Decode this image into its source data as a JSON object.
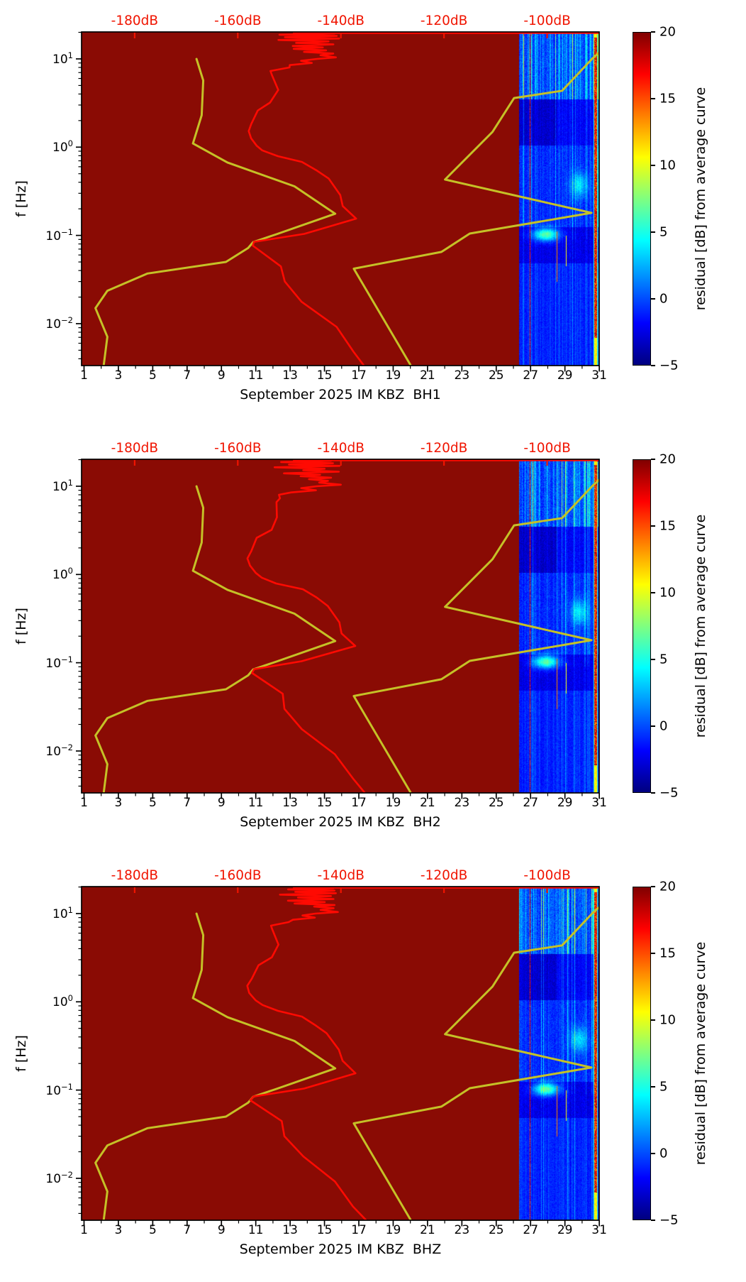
{
  "colors": {
    "plot_background_nodata": "#8a0b04",
    "psd_curve": "#ff0a02",
    "noise_model_curve": "#c5c127",
    "top_axis_text": "#f01400",
    "axis_text": "#000000"
  },
  "colorbar": {
    "label": "residual [dB] from average curve",
    "tick_labels": [
      "20",
      "15",
      "10",
      "5",
      "0",
      "−5"
    ],
    "tick_values": [
      20,
      15,
      10,
      5,
      0,
      -5
    ],
    "vmin": -5,
    "vmax": 20,
    "colormap": "jet"
  },
  "axes": {
    "y_label": "f [Hz]",
    "y_tick_exponents": [
      "1",
      "0",
      "−1",
      "−2"
    ],
    "y_tick_values": [
      10,
      1,
      0.1,
      0.01
    ],
    "y_range_hz": [
      0.00335,
      20.2
    ],
    "x_tick_days": [
      1,
      3,
      5,
      7,
      9,
      11,
      13,
      15,
      17,
      19,
      21,
      23,
      25,
      27,
      29,
      31
    ],
    "x_minor_days": [
      2,
      4,
      6,
      8,
      10,
      12,
      14,
      16,
      18,
      20,
      22,
      24,
      26,
      28,
      30
    ],
    "x_range_days": [
      0.86,
      31.0
    ],
    "top_tick_labels": [
      "-180dB",
      "-160dB",
      "-140dB",
      "-120dB",
      "-100dB"
    ],
    "top_tick_values": [
      -180,
      -160,
      -140,
      -120,
      -100
    ],
    "top_range_db": [
      -190.3,
      -89.9
    ]
  },
  "panels": [
    {
      "xlabel": "September 2025 IM KBZ  BH1",
      "channel": "BH1",
      "seed": 3
    },
    {
      "xlabel": "September 2025 IM KBZ  BH2",
      "channel": "BH2",
      "seed": 5
    },
    {
      "xlabel": "September 2025 IM KBZ  BHZ",
      "channel": "BHZ",
      "seed": 9
    }
  ],
  "chart_data": {
    "type": "heatmap",
    "title": "",
    "xlabel_per_panel": [
      "September 2025 IM KBZ  BH1",
      "September 2025 IM KBZ  BH2",
      "September 2025 IM KBZ  BHZ"
    ],
    "ylabel": "f [Hz]",
    "x_axis": {
      "unit": "day of month",
      "range": [
        0.86,
        31.0
      ],
      "major_ticks": [
        1,
        3,
        5,
        7,
        9,
        11,
        13,
        15,
        17,
        19,
        21,
        23,
        25,
        27,
        29,
        31
      ]
    },
    "y_axis": {
      "unit": "Hz",
      "scale": "log",
      "range": [
        0.00335,
        20.2
      ],
      "major_ticks": [
        10,
        1,
        0.1,
        0.01
      ]
    },
    "secondary_top_axis": {
      "unit": "dB",
      "range": [
        -190.3,
        -89.9
      ],
      "ticks": [
        -180,
        -160,
        -140,
        -120,
        -100
      ]
    },
    "colorbar": {
      "label": "residual [dB] from average curve",
      "range": [
        -5,
        20
      ],
      "ticks": [
        20,
        15,
        10,
        5,
        0,
        -5
      ],
      "colormap": "jet"
    },
    "curves": {
      "low_noise_model_f_db": [
        [
          10,
          -168
        ],
        [
          5.7,
          -166.7
        ],
        [
          2.3,
          -167
        ],
        [
          1.1,
          -168.7
        ],
        [
          0.67,
          -162
        ],
        [
          0.36,
          -149
        ],
        [
          0.176,
          -141.1
        ],
        [
          0.103,
          -152.5
        ],
        [
          0.084,
          -157
        ],
        [
          0.072,
          -158
        ],
        [
          0.05,
          -162.3
        ],
        [
          0.037,
          -177.5
        ],
        [
          0.0236,
          -185.3
        ],
        [
          0.015,
          -187.6
        ],
        [
          0.0071,
          -185.3
        ],
        [
          0.0034,
          -186
        ]
      ],
      "high_noise_model_f_db": [
        [
          11.8,
          -89.9
        ],
        [
          10.1,
          -91.2
        ],
        [
          4.35,
          -97.1
        ],
        [
          3.6,
          -106.4
        ],
        [
          1.49,
          -110.6
        ],
        [
          0.43,
          -119.8
        ],
        [
          0.18,
          -91.4
        ],
        [
          0.105,
          -115
        ],
        [
          0.065,
          -120.5
        ],
        [
          0.042,
          -137.5
        ],
        [
          0.0034,
          -126.5
        ]
      ],
      "average_psd_f_db": [
        [
          20,
          -149
        ],
        [
          19.4,
          -142
        ],
        [
          18.8,
          -151
        ],
        [
          18.2,
          -140.5
        ],
        [
          17.6,
          -150
        ],
        [
          17,
          -141
        ],
        [
          16.4,
          -152
        ],
        [
          15.8,
          -143
        ],
        [
          15.2,
          -148
        ],
        [
          14.6,
          -141
        ],
        [
          14,
          -150.5
        ],
        [
          13.5,
          -143
        ],
        [
          13,
          -148
        ],
        [
          12.5,
          -142
        ],
        [
          12,
          -146
        ],
        [
          11.5,
          -141.5
        ],
        [
          11,
          -145
        ],
        [
          10.4,
          -140.8
        ],
        [
          10,
          -144
        ],
        [
          9.5,
          -147
        ],
        [
          9,
          -145
        ],
        [
          8.5,
          -149
        ],
        [
          8,
          -151
        ],
        [
          7.3,
          -152.5
        ],
        [
          6.6,
          -153.4
        ],
        [
          4.45,
          -152.2
        ],
        [
          3.2,
          -153.6
        ],
        [
          2.6,
          -156.1
        ],
        [
          1.83,
          -157.3
        ],
        [
          1.52,
          -158
        ],
        [
          1.26,
          -157.7
        ],
        [
          1.04,
          -156.6
        ],
        [
          0.92,
          -155.2
        ],
        [
          0.79,
          -152.5
        ],
        [
          0.68,
          -147.6
        ],
        [
          0.55,
          -144.8
        ],
        [
          0.44,
          -142.5
        ],
        [
          0.287,
          -140.3
        ],
        [
          0.215,
          -139.6
        ],
        [
          0.155,
          -137.3
        ],
        [
          0.104,
          -147.4
        ],
        [
          0.0845,
          -156.8
        ],
        [
          0.0766,
          -157.3
        ],
        [
          0.0445,
          -151.5
        ],
        [
          0.03,
          -151
        ],
        [
          0.0177,
          -147.5
        ],
        [
          0.0092,
          -141
        ],
        [
          0.0048,
          -137.8
        ],
        [
          0.0034,
          -135.5
        ]
      ],
      "psd_top_edge_line_db_start": -149.3
    },
    "spectrogram": {
      "data_day_start": 26.35,
      "data_day_end": 31.0,
      "base_residual_db": -1,
      "dark_band_f_hz": [
        1.05,
        3.5
      ],
      "dark_band_residual": -3,
      "low_dark_band_f_hz": [
        0.048,
        0.125
      ],
      "low_dark_band_residual": -2.5,
      "bright_blob": {
        "days": [
          27.0,
          28.8
        ],
        "f_hz": [
          0.085,
          0.125
        ],
        "peak_residual": 8.5
      },
      "bright_patch": {
        "days": [
          29.3,
          30.35
        ],
        "f_hz": [
          0.28,
          0.55
        ],
        "peak_residual": 5
      },
      "red_event_lines_days": [
        26.98,
        30.78
      ],
      "short_red_line": {
        "day": 28.52,
        "f_hz": [
          0.03,
          0.11
        ],
        "residual": 13.5
      },
      "faint_red_line": {
        "day": 29.06,
        "f_hz": [
          0.045,
          0.1
        ],
        "residual": 10.5
      }
    }
  }
}
